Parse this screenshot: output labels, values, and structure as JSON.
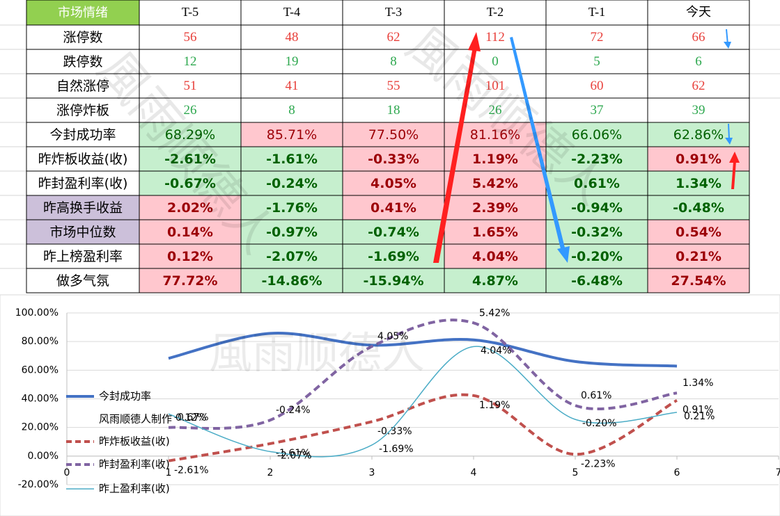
{
  "watermark": "風雨顺德人",
  "table": {
    "header": [
      "市场情绪",
      "T-5",
      "T-4",
      "T-3",
      "T-2",
      "T-1",
      "今天"
    ],
    "header_fill": "#92d050",
    "rows": [
      {
        "label": "涨停数",
        "cells": [
          "56",
          "48",
          "62",
          "112",
          "72",
          "66"
        ],
        "color": "#e8413c"
      },
      {
        "label": "跌停数",
        "cells": [
          "12",
          "19",
          "8",
          "0",
          "5",
          "6"
        ],
        "color": "#2ea84f"
      },
      {
        "label": "自然涨停",
        "cells": [
          "51",
          "41",
          "55",
          "101",
          "60",
          "62"
        ],
        "color": "#e8413c"
      },
      {
        "label": "涨停炸板",
        "cells": [
          "26",
          "8",
          "18",
          "26",
          "37",
          "39"
        ],
        "color": "#2ea84f"
      },
      {
        "label": "今封成功率",
        "cells": [
          "68.29%",
          "85.71%",
          "77.50%",
          "81.16%",
          "66.06%",
          "62.86%"
        ],
        "fills": [
          "#c6efce",
          "#ffc7ce",
          "#ffc7ce",
          "#ffc7ce",
          "#c6efce",
          "#c6efce"
        ],
        "bold": false
      },
      {
        "label": "昨炸板收益(收)",
        "cells": [
          "-2.61%",
          "-1.61%",
          "-0.33%",
          "1.19%",
          "-2.23%",
          "0.91%"
        ],
        "fills": [
          "#c6efce",
          "#c6efce",
          "#ffc7ce",
          "#ffc7ce",
          "#c6efce",
          "#ffc7ce"
        ],
        "bold": true
      },
      {
        "label": "昨封盈利率(收)",
        "cells": [
          "-0.67%",
          "-0.24%",
          "4.05%",
          "5.42%",
          "0.61%",
          "1.34%"
        ],
        "fills": [
          "#c6efce",
          "#c6efce",
          "#ffc7ce",
          "#ffc7ce",
          "#c6efce",
          "#c6efce"
        ],
        "bold": true
      },
      {
        "label": "昨高换手收益",
        "label_fill": "#ccc0da",
        "cells": [
          "2.02%",
          "-1.76%",
          "0.41%",
          "2.39%",
          "-0.94%",
          "-0.48%"
        ],
        "fills": [
          "#ffc7ce",
          "#c6efce",
          "#ffc7ce",
          "#ffc7ce",
          "#c6efce",
          "#c6efce"
        ],
        "bold": true
      },
      {
        "label": "市场中位数",
        "label_fill": "#ccc0da",
        "cells": [
          "0.14%",
          "-0.97%",
          "-0.74%",
          "1.65%",
          "-0.32%",
          "0.54%"
        ],
        "fills": [
          "#ffc7ce",
          "#c6efce",
          "#c6efce",
          "#ffc7ce",
          "#c6efce",
          "#ffc7ce"
        ],
        "bold": true
      },
      {
        "label": "昨上榜盈利率",
        "cells": [
          "0.12%",
          "-2.07%",
          "-1.69%",
          "4.04%",
          "-0.20%",
          "0.21%"
        ],
        "fills": [
          "#ffc7ce",
          "#c6efce",
          "#c6efce",
          "#ffc7ce",
          "#c6efce",
          "#ffc7ce"
        ],
        "bold": true
      },
      {
        "label": "做多气氛",
        "cells": [
          "77.72%",
          "-14.86%",
          "-15.94%",
          "4.87%",
          "-6.48%",
          "27.54%"
        ],
        "fills": [
          "#ffc7ce",
          "#c6efce",
          "#c6efce",
          "#c6efce",
          "#c6efce",
          "#ffc7ce"
        ],
        "bold": true
      }
    ]
  },
  "chart_data": {
    "type": "line",
    "x": [
      1,
      2,
      3,
      4,
      5,
      6
    ],
    "xlim": [
      0,
      7
    ],
    "xticks": [
      0,
      1,
      2,
      3,
      4,
      5,
      6,
      7
    ],
    "ylim": [
      -20,
      100
    ],
    "yticks": [
      {
        "value": 100,
        "label": "100.00%"
      },
      {
        "value": 80,
        "label": "80.00%"
      },
      {
        "value": 60,
        "label": "60.00%"
      },
      {
        "value": 40,
        "label": "40.00%"
      },
      {
        "value": 20,
        "label": "20.00%"
      },
      {
        "value": 0,
        "label": "0.00%"
      },
      {
        "value": -20,
        "label": "-20.00%"
      }
    ],
    "y2lim": [
      -4,
      6
    ],
    "grid": true,
    "legend": "left",
    "legend_text": "风雨顺德人制作",
    "series": [
      {
        "name": "今封成功率",
        "color": "#4472c4",
        "width": 4,
        "dash": false,
        "values": [
          68.29,
          85.71,
          77.5,
          81.16,
          66.06,
          62.86
        ]
      },
      {
        "name": "昨炸板收益(收)",
        "color": "#c0504d",
        "width": 4,
        "dash": true,
        "axis": "y2",
        "values": [
          -2.61,
          -1.61,
          -0.33,
          1.19,
          -2.23,
          0.91
        ],
        "value_labels": [
          "-2.61%",
          "-1.61%",
          "-0.33%",
          "1.19%",
          "-2.23%",
          "0.91%"
        ]
      },
      {
        "name": "昨封盈利率(收)",
        "color": "#8064a2",
        "width": 4,
        "dash": true,
        "axis": "y2",
        "values": [
          -0.67,
          -0.24,
          4.05,
          5.42,
          0.61,
          1.34
        ],
        "value_labels": [
          "-0.67%",
          "-0.24%",
          "4.05%",
          "5.42%",
          "0.61%",
          "1.34%"
        ]
      },
      {
        "name": "昨上盈利率(收)",
        "color": "#4bacc6",
        "width": 1.5,
        "dash": false,
        "axis": "y2",
        "values": [
          0.12,
          -2.07,
          -1.69,
          4.04,
          -0.2,
          0.21
        ],
        "value_labels": [
          "0.12%",
          "-2.07%",
          "-1.69%",
          "4.04%",
          "-0.20%",
          "0.21%"
        ]
      }
    ]
  }
}
